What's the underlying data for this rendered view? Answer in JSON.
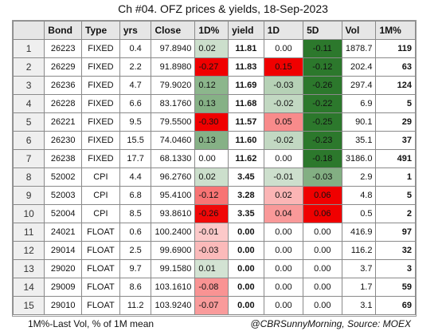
{
  "title": "Ch #04. OFZ prices & yields, 18-Sep-2023",
  "footer": {
    "note": "1M%-Last Vol, % of 1M mean",
    "credit": "@CBRSunnyMorning, Source: MOEX"
  },
  "chart_data": {
    "type": "table",
    "columns": [
      "",
      "Bond",
      "Type",
      "yrs",
      "Close",
      "1D%",
      "yield",
      "1D",
      "5D",
      "Vol",
      "1M%"
    ],
    "rows": [
      {
        "n": "1",
        "bond": "26223",
        "type": "FIXED",
        "yrs": "0.4",
        "close": "97.8940",
        "d1pct": "0.02",
        "yield": "11.81",
        "d1": "0.00",
        "d5": "-0.11",
        "vol": "1878.7",
        "m1": "119"
      },
      {
        "n": "2",
        "bond": "26229",
        "type": "FIXED",
        "yrs": "2.2",
        "close": "91.8980",
        "d1pct": "-0.27",
        "yield": "11.83",
        "d1": "0.15",
        "d5": "-0.12",
        "vol": "202.4",
        "m1": "63"
      },
      {
        "n": "3",
        "bond": "26236",
        "type": "FIXED",
        "yrs": "4.7",
        "close": "79.9020",
        "d1pct": "0.12",
        "yield": "11.69",
        "d1": "-0.03",
        "d5": "-0.26",
        "vol": "297.4",
        "m1": "124"
      },
      {
        "n": "4",
        "bond": "26228",
        "type": "FIXED",
        "yrs": "6.6",
        "close": "83.1760",
        "d1pct": "0.13",
        "yield": "11.68",
        "d1": "-0.02",
        "d5": "-0.22",
        "vol": "6.9",
        "m1": "5"
      },
      {
        "n": "5",
        "bond": "26221",
        "type": "FIXED",
        "yrs": "9.5",
        "close": "79.5500",
        "d1pct": "-0.30",
        "yield": "11.57",
        "d1": "0.05",
        "d5": "-0.25",
        "vol": "90.1",
        "m1": "29"
      },
      {
        "n": "6",
        "bond": "26230",
        "type": "FIXED",
        "yrs": "15.5",
        "close": "74.0460",
        "d1pct": "0.13",
        "yield": "11.60",
        "d1": "-0.02",
        "d5": "-0.23",
        "vol": "35.1",
        "m1": "37"
      },
      {
        "n": "7",
        "bond": "26238",
        "type": "FIXED",
        "yrs": "17.7",
        "close": "68.1330",
        "d1pct": "0.00",
        "yield": "11.62",
        "d1": "0.00",
        "d5": "-0.18",
        "vol": "3186.0",
        "m1": "491"
      },
      {
        "n": "8",
        "bond": "52002",
        "type": "CPI",
        "yrs": "4.4",
        "close": "96.2760",
        "d1pct": "0.02",
        "yield": "3.45",
        "d1": "-0.01",
        "d5": "-0.03",
        "vol": "2.9",
        "m1": "1"
      },
      {
        "n": "9",
        "bond": "52003",
        "type": "CPI",
        "yrs": "6.8",
        "close": "95.4100",
        "d1pct": "-0.12",
        "yield": "3.28",
        "d1": "0.02",
        "d5": "0.06",
        "vol": "4.8",
        "m1": "5"
      },
      {
        "n": "10",
        "bond": "52004",
        "type": "CPI",
        "yrs": "8.5",
        "close": "93.8610",
        "d1pct": "-0.26",
        "yield": "3.35",
        "d1": "0.04",
        "d5": "0.06",
        "vol": "0.5",
        "m1": "2"
      },
      {
        "n": "11",
        "bond": "24021",
        "type": "FLOAT",
        "yrs": "0.6",
        "close": "100.2400",
        "d1pct": "-0.01",
        "yield": "0.00",
        "d1": "0.00",
        "d5": "0.00",
        "vol": "416.9",
        "m1": "97"
      },
      {
        "n": "12",
        "bond": "29014",
        "type": "FLOAT",
        "yrs": "2.5",
        "close": "99.6900",
        "d1pct": "-0.03",
        "yield": "0.00",
        "d1": "0.00",
        "d5": "0.00",
        "vol": "116.2",
        "m1": "32"
      },
      {
        "n": "13",
        "bond": "29020",
        "type": "FLOAT",
        "yrs": "9.7",
        "close": "99.1580",
        "d1pct": "0.01",
        "yield": "0.00",
        "d1": "0.00",
        "d5": "0.00",
        "vol": "3.7",
        "m1": "3"
      },
      {
        "n": "14",
        "bond": "29009",
        "type": "FLOAT",
        "yrs": "8.6",
        "close": "103.1610",
        "d1pct": "-0.08",
        "yield": "0.00",
        "d1": "0.00",
        "d5": "0.00",
        "vol": "1.7",
        "m1": "59"
      },
      {
        "n": "15",
        "bond": "29010",
        "type": "FLOAT",
        "yrs": "11.2",
        "close": "103.9240",
        "d1pct": "-0.07",
        "yield": "0.00",
        "d1": "0.00",
        "d5": "0.00",
        "vol": "3.1",
        "m1": "69"
      }
    ]
  }
}
